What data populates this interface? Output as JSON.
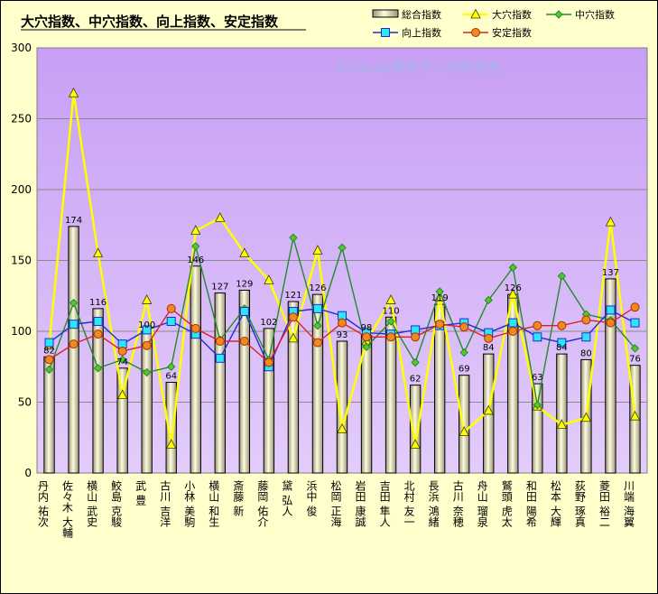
{
  "chart_data": {
    "type": "bar",
    "title": "大穴指数、中穴指数、向上指数、安定指数",
    "watermark": "©Caniの競馬データ研究室",
    "ylim": [
      0,
      300
    ],
    "yticks": [
      0,
      50,
      100,
      150,
      200,
      250,
      300
    ],
    "grid": true,
    "legend_position": "top-right",
    "categories": [
      "丹内 祐次",
      "佐々木 大輔",
      "横山 武史",
      "鮫島 克駿",
      "武 豊",
      "古川 吉洋",
      "小林 美駒",
      "横山 和生",
      "斎藤 新",
      "藤岡 佑介",
      "黛 弘人",
      "浜中 俊",
      "松岡 正海",
      "岩田 康誠",
      "吉田 隼人",
      "北村 友一",
      "長浜 鴻緒",
      "古川 奈穂",
      "舟山 瑠泉",
      "鷲頭 虎太",
      "和田 陽希",
      "松本 大輝",
      "荻野 琢真",
      "菱田 裕二",
      "川端 海翼"
    ],
    "series": [
      {
        "name": "総合指数",
        "type": "bar",
        "color": "#f0ecb4",
        "values": [
          82,
          174,
          116,
          74,
          100,
          64,
          146,
          127,
          129,
          102,
          121,
          126,
          93,
          98,
          110,
          62,
          119,
          69,
          84,
          126,
          63,
          84,
          80,
          137,
          76
        ]
      },
      {
        "name": "大穴指数",
        "type": "line",
        "color": "#ffff00",
        "marker": "triangle",
        "values": [
          90,
          268,
          155,
          55,
          122,
          20,
          171,
          180,
          155,
          136,
          95,
          157,
          31,
          93,
          122,
          20,
          124,
          29,
          44,
          126,
          47,
          34,
          39,
          177,
          40
        ]
      },
      {
        "name": "中穴指数",
        "type": "line",
        "color": "#238a2b",
        "marker": "diamond",
        "values": [
          73,
          120,
          74,
          80,
          71,
          75,
          160,
          94,
          116,
          80,
          166,
          104,
          159,
          89,
          107,
          78,
          128,
          85,
          122,
          145,
          48,
          139,
          112,
          108,
          88
        ]
      },
      {
        "name": "向上指数",
        "type": "line",
        "color": "#1e2cd6",
        "marker": "square",
        "values": [
          92,
          105,
          107,
          91,
          101,
          107,
          98,
          81,
          114,
          75,
          114,
          116,
          111,
          99,
          98,
          101,
          104,
          106,
          99,
          106,
          96,
          92,
          96,
          115,
          106
        ]
      },
      {
        "name": "安定指数",
        "type": "line",
        "color": "#e02020",
        "marker": "circle",
        "values": [
          80,
          91,
          98,
          86,
          90,
          116,
          102,
          93,
          93,
          78,
          110,
          92,
          106,
          96,
          96,
          96,
          105,
          103,
          95,
          100,
          104,
          104,
          108,
          106,
          117
        ]
      }
    ]
  }
}
